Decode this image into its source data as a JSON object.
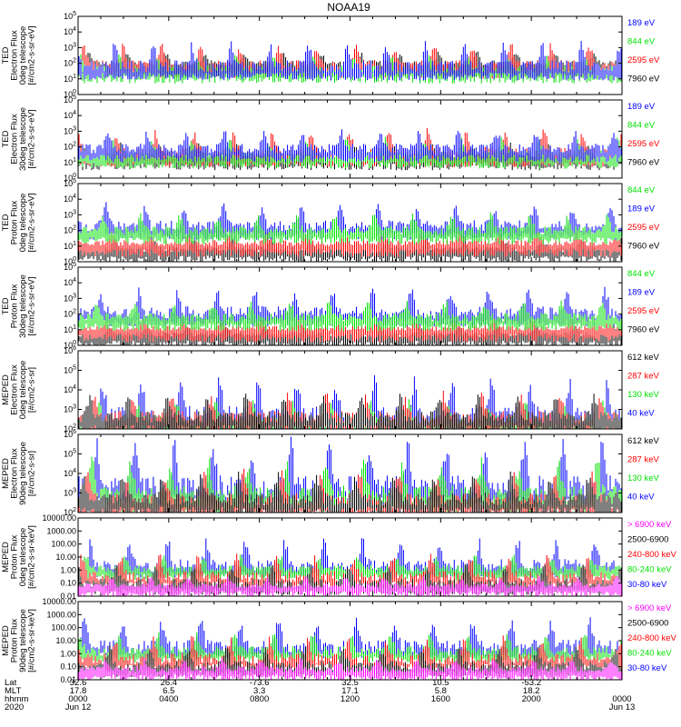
{
  "title": "NOAA19",
  "colors": {
    "black": "#000000",
    "red": "#ff0000",
    "green": "#00e000",
    "blue": "#0000ff",
    "magenta": "#ff00ff"
  },
  "footer": {
    "row_labels": [
      "Lat",
      "MLT",
      "hhmm",
      "2020"
    ],
    "columns": [
      {
        "lat": "32.6",
        "mlt": "17.8",
        "hhmm": "0000",
        "date": "Jun 12"
      },
      {
        "lat": "26.4",
        "mlt": "6.5",
        "hhmm": "0400",
        "date": ""
      },
      {
        "lat": "-73.6",
        "mlt": "3.3",
        "hhmm": "0800",
        "date": ""
      },
      {
        "lat": "32.5",
        "mlt": "17.1",
        "hhmm": "1200",
        "date": ""
      },
      {
        "lat": "10.5",
        "mlt": "5.8",
        "hhmm": "1600",
        "date": ""
      },
      {
        "lat": "-53.2",
        "mlt": "18.2",
        "hhmm": "2000",
        "date": ""
      },
      {
        "lat": "",
        "mlt": "",
        "hhmm": "0000",
        "date": "Jun 13"
      }
    ]
  },
  "chart_data": [
    {
      "type": "line",
      "ylabel": [
        "TED",
        "Electron Flux",
        "0deg telescope",
        "[#/cm2-s-sr-eV]"
      ],
      "yscale": "log",
      "ylim": [
        1,
        100000
      ],
      "ytick_labels": [
        "10^0",
        "10^1",
        "10^2",
        "10^3",
        "10^4",
        "10^5"
      ],
      "series": [
        {
          "name": "7960 eV",
          "color": "black",
          "base": 2.0,
          "amp": 0.6
        },
        {
          "name": "2595 eV",
          "color": "red",
          "base": 1.9,
          "amp": 1.1
        },
        {
          "name": "844 eV",
          "color": "green",
          "base": 1.6,
          "amp": 0.8
        },
        {
          "name": "189 eV",
          "color": "blue",
          "base": 1.8,
          "amp": 1.3
        }
      ]
    },
    {
      "type": "line",
      "ylabel": [
        "TED",
        "Electron Flux",
        "30deg telescope",
        "[#/cm2-s-sr-eV]"
      ],
      "yscale": "log",
      "ylim": [
        1,
        100000
      ],
      "ytick_labels": [
        "10^0",
        "10^1",
        "10^2",
        "10^3",
        "10^4",
        "10^5"
      ],
      "series": [
        {
          "name": "7960 eV",
          "color": "black",
          "base": 1.4,
          "amp": 0.7
        },
        {
          "name": "2595 eV",
          "color": "red",
          "base": 1.6,
          "amp": 1.3
        },
        {
          "name": "844 eV",
          "color": "green",
          "base": 1.5,
          "amp": 0.9
        },
        {
          "name": "189 eV",
          "color": "blue",
          "base": 1.9,
          "amp": 1.0
        }
      ]
    },
    {
      "type": "line",
      "ylabel": [
        "TED",
        "Proton Flux",
        "0deg telescope",
        "[#/cm2-s-sr-eV]"
      ],
      "yscale": "log",
      "ylim": [
        1,
        100000
      ],
      "ytick_labels": [
        "10^0",
        "10^1",
        "10^2",
        "10^3",
        "10^4",
        "10^5"
      ],
      "series": [
        {
          "name": "7960 eV",
          "color": "black",
          "base": 0.8,
          "amp": 0.6
        },
        {
          "name": "2595 eV",
          "color": "red",
          "base": 1.2,
          "amp": 0.6
        },
        {
          "name": "189 eV",
          "color": "blue",
          "base": 2.3,
          "amp": 1.2
        },
        {
          "name": "844 eV",
          "color": "green",
          "base": 2.0,
          "amp": 0.9
        }
      ]
    },
    {
      "type": "line",
      "ylabel": [
        "TED",
        "Proton Flux",
        "30deg telescope",
        "[#/cm2-s-sr-eV]"
      ],
      "yscale": "log",
      "ylim": [
        1,
        100000
      ],
      "ytick_labels": [
        "10^0",
        "10^1",
        "10^2",
        "10^3",
        "10^4",
        "10^5"
      ],
      "series": [
        {
          "name": "7960 eV",
          "color": "black",
          "base": 0.7,
          "amp": 0.5
        },
        {
          "name": "2595 eV",
          "color": "red",
          "base": 1.1,
          "amp": 0.5
        },
        {
          "name": "189 eV",
          "color": "blue",
          "base": 2.1,
          "amp": 1.3
        },
        {
          "name": "844 eV",
          "color": "green",
          "base": 1.8,
          "amp": 0.9
        }
      ]
    },
    {
      "type": "line",
      "ylabel": [
        "MEPED",
        "Electron Flux",
        "0deg telescope",
        "[#/cm2-s-sr]"
      ],
      "yscale": "log",
      "ylim": [
        100,
        1000000
      ],
      "ytick_labels": [
        "10^2",
        "10^3",
        "10^4",
        "10^5",
        "10^6"
      ],
      "series": [
        {
          "name": "40 keV",
          "color": "blue",
          "base": 2.7,
          "amp": 1.6
        },
        {
          "name": "130 keV",
          "color": "green",
          "base": 2.4,
          "amp": 0.9
        },
        {
          "name": "287 keV",
          "color": "red",
          "base": 2.6,
          "amp": 1.1
        },
        {
          "name": "612 keV",
          "color": "black",
          "base": 2.6,
          "amp": 1.0
        }
      ]
    },
    {
      "type": "line",
      "ylabel": [
        "MEPED",
        "Electron Flux",
        "90deg telescope",
        "[#/cm2-s-sr]"
      ],
      "yscale": "log",
      "ylim": [
        100,
        1000000
      ],
      "ytick_labels": [
        "10^2",
        "10^3",
        "10^4",
        "10^5",
        "10^6"
      ],
      "series": [
        {
          "name": "40 keV",
          "color": "blue",
          "base": 3.3,
          "amp": 2.0
        },
        {
          "name": "130 keV",
          "color": "green",
          "base": 2.9,
          "amp": 1.6
        },
        {
          "name": "287 keV",
          "color": "red",
          "base": 2.6,
          "amp": 1.3
        },
        {
          "name": "612 keV",
          "color": "black",
          "base": 2.7,
          "amp": 1.1
        }
      ]
    },
    {
      "type": "line",
      "ylabel": [
        "MEPED",
        "Proton Flux",
        "0deg telescope",
        "[#/cm2-s-sr-keV]"
      ],
      "yscale": "log",
      "ylim": [
        0.01,
        10000
      ],
      "ytick_labels": [
        "0.01",
        "0.10",
        "1.00",
        "10.00",
        "100.00",
        "1000.00",
        "10000.00"
      ],
      "series": [
        {
          "name": "30-80 keV",
          "color": "blue",
          "base": 0.3,
          "amp": 1.8
        },
        {
          "name": "80-240 keV",
          "color": "green",
          "base": 0.1,
          "amp": 0.9
        },
        {
          "name": "240-800 keV",
          "color": "red",
          "base": -0.5,
          "amp": 1.4
        },
        {
          "name": "2500-6900",
          "color": "black",
          "base": -1.0,
          "amp": 1.2
        },
        {
          "name": "> 6900 keV",
          "color": "magenta",
          "base": -1.2,
          "amp": 0.6
        }
      ]
    },
    {
      "type": "line",
      "ylabel": [
        "MEPED",
        "Proton Flux",
        "90deg telescope",
        "[#/cm2-s-sr-keV]"
      ],
      "yscale": "log",
      "ylim": [
        0.01,
        10000
      ],
      "ytick_labels": [
        "0.01",
        "0.10",
        "1.00",
        "10.00",
        "100.00",
        "1000.00",
        "10000.00"
      ],
      "series": [
        {
          "name": "30-80 keV",
          "color": "blue",
          "base": 0.5,
          "amp": 1.9
        },
        {
          "name": "80-240 keV",
          "color": "green",
          "base": 0.2,
          "amp": 1.2
        },
        {
          "name": "240-800 keV",
          "color": "red",
          "base": -0.4,
          "amp": 1.4
        },
        {
          "name": "2500-6900",
          "color": "black",
          "base": -0.9,
          "amp": 1.2
        },
        {
          "name": "> 6900 keV",
          "color": "magenta",
          "base": -1.2,
          "amp": 0.7
        }
      ]
    }
  ]
}
